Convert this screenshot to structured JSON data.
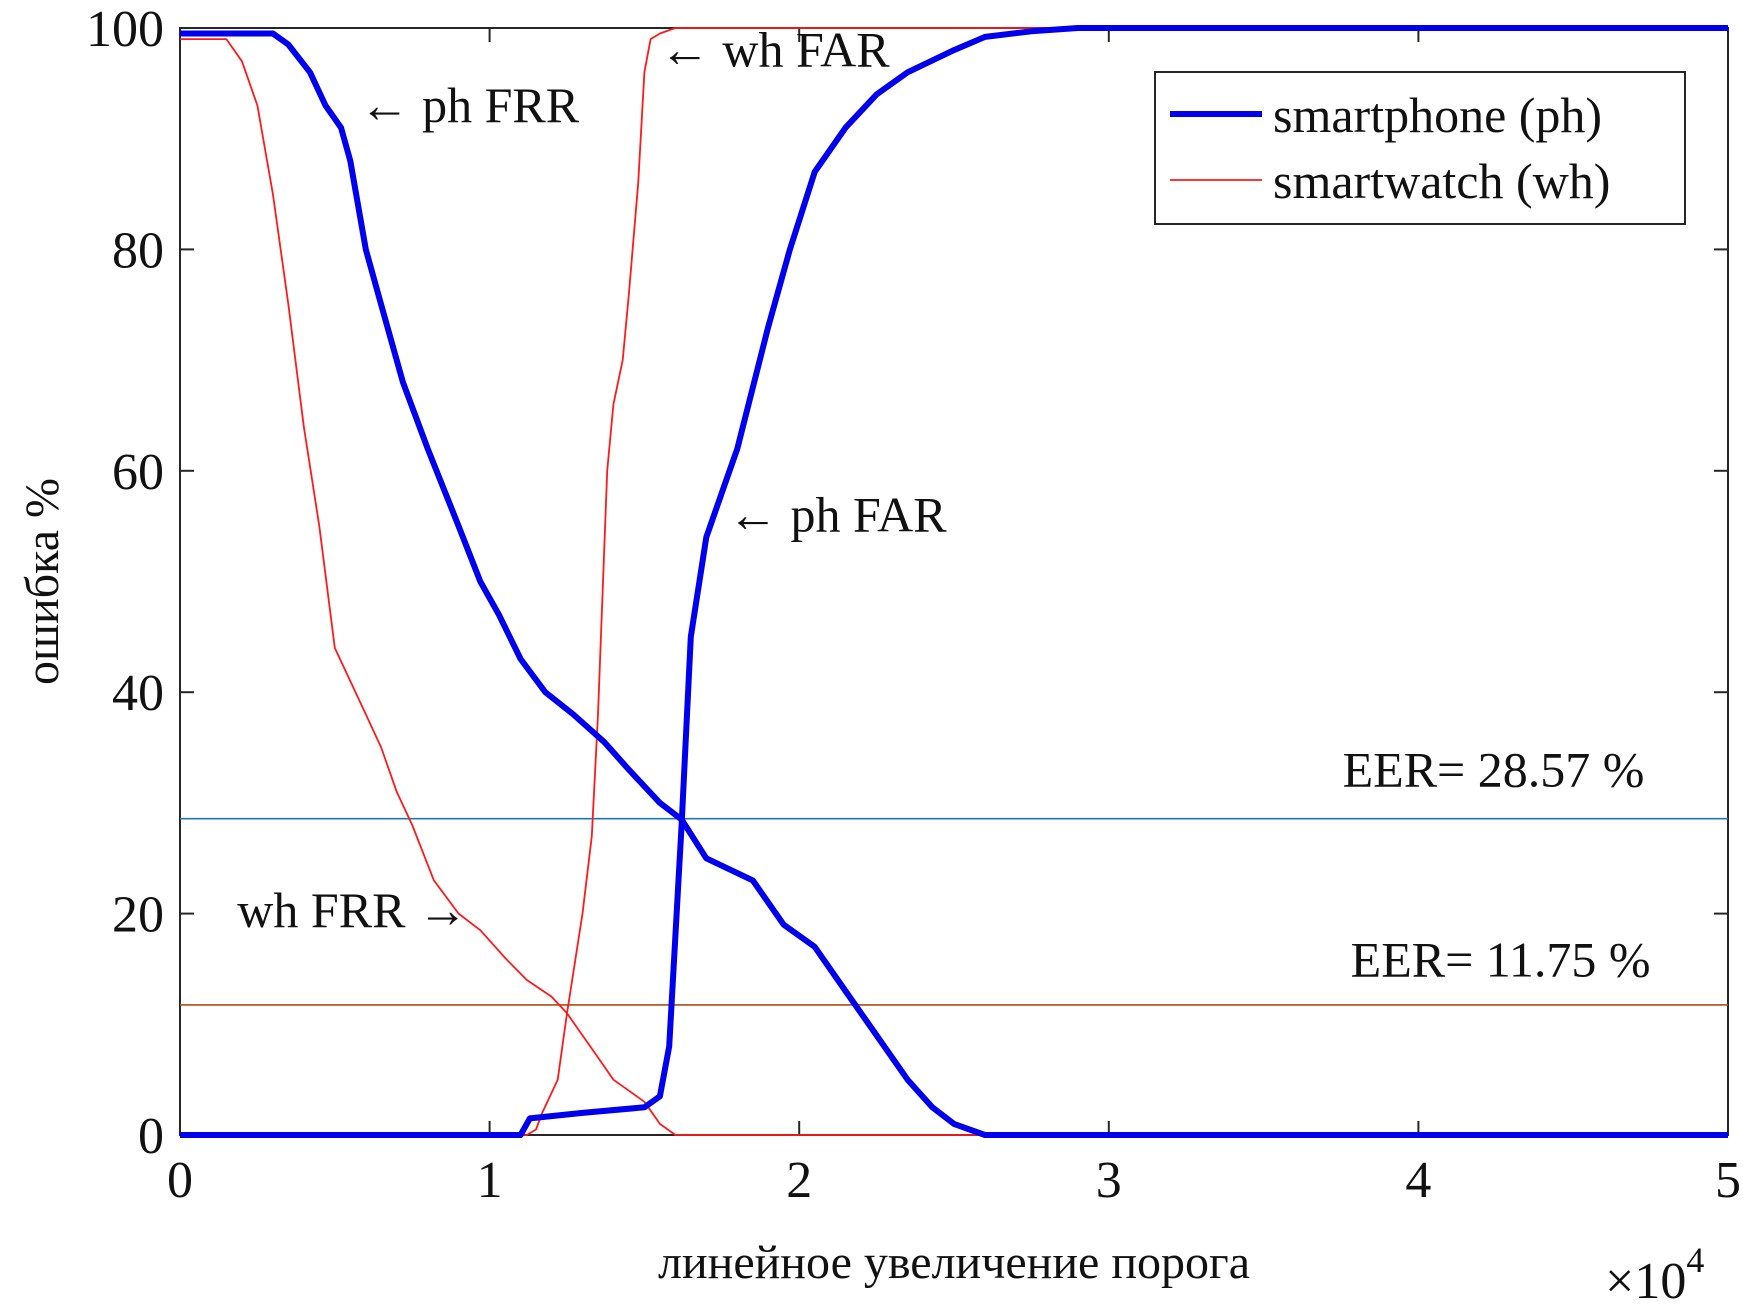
{
  "chart_data": {
    "type": "line",
    "xlabel": "линейное увеличение порога",
    "ylabel": "ошибка %",
    "x_multiplier_label": "×10",
    "x_multiplier_exp": "4",
    "xlim": [
      0,
      5
    ],
    "ylim": [
      0,
      100
    ],
    "xticks": [
      0,
      1,
      2,
      3,
      4,
      5
    ],
    "xtick_labels": [
      "0",
      "1",
      "2",
      "3",
      "4",
      "5"
    ],
    "yticks": [
      0,
      20,
      40,
      60,
      80,
      100
    ],
    "ytick_labels": [
      "0",
      "20",
      "40",
      "60",
      "80",
      "100"
    ],
    "grid": false,
    "legend": {
      "placement": "top-right",
      "entries": [
        {
          "label": "smartphone (ph)",
          "color": "#0000ee"
        },
        {
          "label": "smartwatch (wh)",
          "color": "#ff1a1a"
        }
      ]
    },
    "series": [
      {
        "key": "ph_frr",
        "color": "#0000ee",
        "weight": "thick",
        "x": [
          0,
          0.3,
          0.35,
          0.42,
          0.47,
          0.52,
          0.55,
          0.6,
          0.65,
          0.72,
          0.8,
          0.9,
          0.97,
          1.03,
          1.1,
          1.18,
          1.27,
          1.37,
          1.45,
          1.55,
          1.62,
          1.7,
          1.85,
          1.95,
          2.05,
          2.15,
          2.25,
          2.35,
          2.43,
          2.5,
          2.6,
          5
        ],
        "y": [
          99.5,
          99.5,
          98.5,
          96,
          93,
          91,
          88,
          80,
          75,
          68,
          62,
          55,
          50,
          47,
          43,
          40,
          38,
          35.5,
          33,
          30,
          28.5,
          25,
          23,
          19,
          17,
          13,
          9,
          5,
          2.5,
          1,
          0,
          0
        ]
      },
      {
        "key": "ph_far",
        "color": "#0000ee",
        "weight": "thick",
        "x": [
          0,
          1.1,
          1.13,
          1.3,
          1.5,
          1.55,
          1.58,
          1.6,
          1.62,
          1.65,
          1.7,
          1.75,
          1.8,
          1.9,
          1.97,
          2.05,
          2.15,
          2.25,
          2.35,
          2.5,
          2.6,
          2.75,
          2.9,
          5
        ],
        "y": [
          0,
          0,
          1.5,
          2,
          2.5,
          3.5,
          8,
          18,
          28,
          45,
          54,
          58,
          62,
          73,
          80,
          87,
          91,
          94,
          96,
          98,
          99.2,
          99.7,
          100,
          100
        ]
      },
      {
        "key": "wh_frr",
        "color": "#ff1a1a",
        "weight": "thin",
        "x": [
          0,
          0.15,
          0.2,
          0.25,
          0.3,
          0.35,
          0.4,
          0.45,
          0.5,
          0.55,
          0.6,
          0.65,
          0.7,
          0.75,
          0.82,
          0.9,
          0.97,
          1.05,
          1.12,
          1.2,
          1.25,
          1.3,
          1.35,
          1.4,
          1.45,
          1.5,
          1.55,
          1.6,
          5
        ],
        "y": [
          99,
          99,
          97,
          93,
          85,
          75,
          64,
          55,
          44,
          41,
          38,
          35,
          31,
          28,
          23,
          20,
          18.5,
          16,
          14,
          12.5,
          11,
          9,
          7,
          5,
          4,
          3,
          1,
          0,
          0
        ]
      },
      {
        "key": "wh_far",
        "color": "#ff1a1a",
        "weight": "thin",
        "x": [
          0,
          1.12,
          1.15,
          1.17,
          1.22,
          1.25,
          1.3,
          1.33,
          1.35,
          1.38,
          1.4,
          1.43,
          1.45,
          1.48,
          1.5,
          1.52,
          1.55,
          1.6,
          5
        ],
        "y": [
          0,
          0,
          0.5,
          2,
          5,
          11,
          20,
          27,
          38,
          60,
          66,
          70,
          76,
          86,
          96,
          99,
          99.5,
          100,
          100
        ]
      },
      {
        "key": "eer_ph",
        "color": "#1f77b4",
        "weight": "hair",
        "x": [
          0,
          5
        ],
        "y": [
          28.57,
          28.57
        ]
      },
      {
        "key": "eer_wh",
        "color": "#b34a1a",
        "weight": "hair",
        "x": [
          0,
          5
        ],
        "y": [
          11.75,
          11.75
        ]
      }
    ],
    "annotations": [
      {
        "key": "ph_frr",
        "text": "← ph FRR",
        "x": 0.58,
        "y": 91.5,
        "anchor": "start"
      },
      {
        "key": "wh_far",
        "text": "← wh FAR",
        "x": 1.55,
        "y": 96.5,
        "anchor": "start"
      },
      {
        "key": "ph_far",
        "text": "← ph FAR",
        "x": 1.77,
        "y": 54.5,
        "anchor": "start"
      },
      {
        "key": "wh_frr",
        "text": "wh FRR →",
        "x": 0.93,
        "y": 18.8,
        "anchor": "end"
      },
      {
        "key": "eer_ph",
        "text": "EER= 28.57 %",
        "x": 4.73,
        "y": 31.5,
        "anchor": "end"
      },
      {
        "key": "eer_wh",
        "text": "EER= 11.75 %",
        "x": 4.75,
        "y": 14.3,
        "anchor": "end"
      }
    ]
  }
}
